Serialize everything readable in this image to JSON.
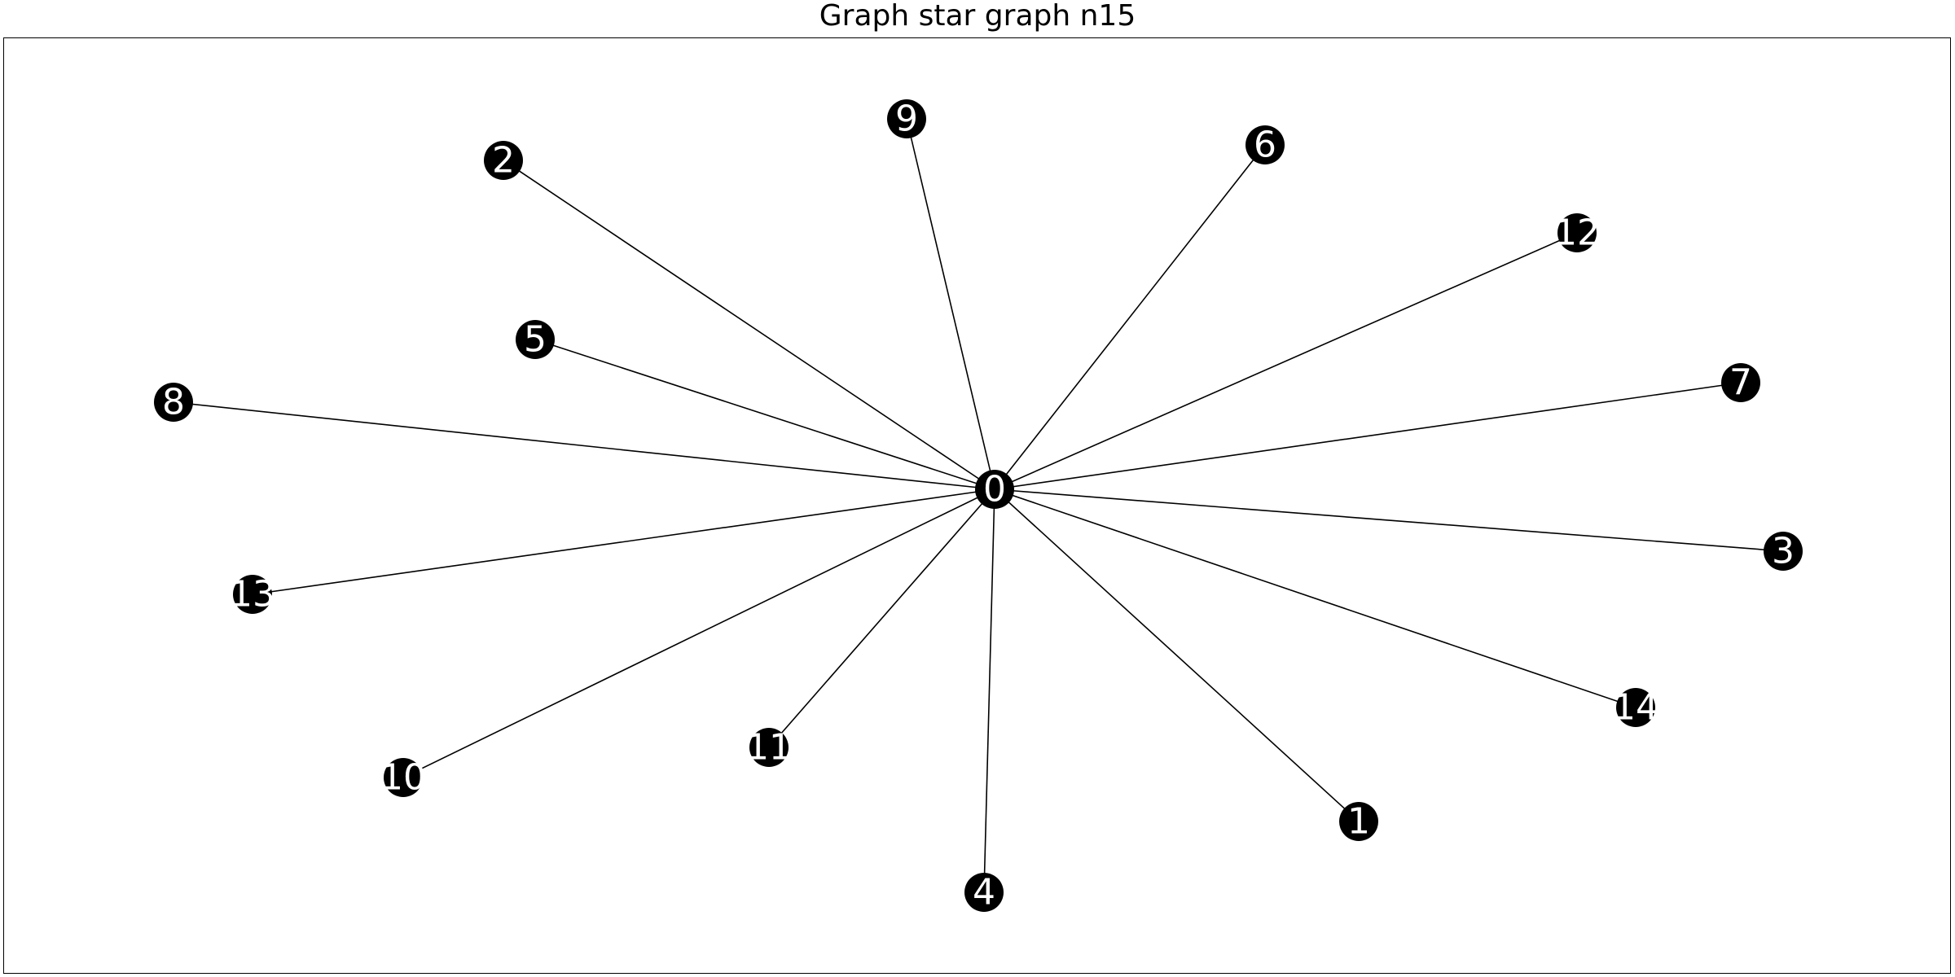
{
  "title": "Graph star graph n15",
  "colors": {
    "node_fill": "#000000",
    "node_label": "#ffffff",
    "edge": "#000000",
    "frame": "#000000",
    "background": "#ffffff"
  },
  "graph": {
    "nodes": [
      {
        "id": "0",
        "label": "0"
      },
      {
        "id": "1",
        "label": "1"
      },
      {
        "id": "2",
        "label": "2"
      },
      {
        "id": "3",
        "label": "3"
      },
      {
        "id": "4",
        "label": "4"
      },
      {
        "id": "5",
        "label": "5"
      },
      {
        "id": "6",
        "label": "6"
      },
      {
        "id": "7",
        "label": "7"
      },
      {
        "id": "8",
        "label": "8"
      },
      {
        "id": "9",
        "label": "9"
      },
      {
        "id": "10",
        "label": "10"
      },
      {
        "id": "11",
        "label": "11"
      },
      {
        "id": "12",
        "label": "12"
      },
      {
        "id": "13",
        "label": "13"
      },
      {
        "id": "14",
        "label": "14"
      }
    ],
    "edges": [
      [
        "0",
        "1"
      ],
      [
        "0",
        "2"
      ],
      [
        "0",
        "3"
      ],
      [
        "0",
        "4"
      ],
      [
        "0",
        "5"
      ],
      [
        "0",
        "6"
      ],
      [
        "0",
        "7"
      ],
      [
        "0",
        "8"
      ],
      [
        "0",
        "9"
      ],
      [
        "0",
        "10"
      ],
      [
        "0",
        "11"
      ],
      [
        "0",
        "12"
      ],
      [
        "0",
        "13"
      ],
      [
        "0",
        "14"
      ]
    ]
  }
}
